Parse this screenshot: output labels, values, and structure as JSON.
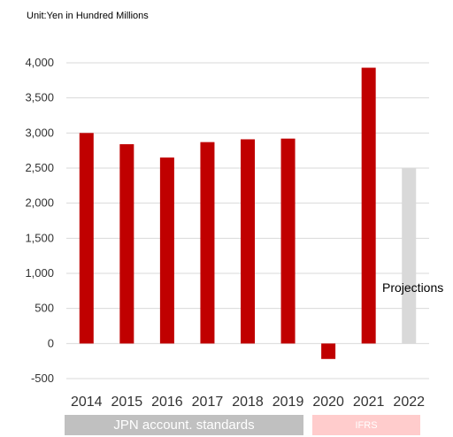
{
  "unit_label": "Unit:Yen in Hundred Millions",
  "projections_label": "Projections",
  "bands": {
    "jpn": "JPN account. standards",
    "ifrs": "IFRS"
  },
  "colors": {
    "actual": "#c00000",
    "projection": "#d9d9d9",
    "grid": "#d9d9d9",
    "jpn_band": "#c0c0c0",
    "ifrs_band": "#ffcccc"
  },
  "chart_data": {
    "type": "bar",
    "categories": [
      "2014",
      "2015",
      "2016",
      "2017",
      "2018",
      "2019",
      "2020",
      "2021",
      "2022"
    ],
    "values": [
      3000,
      2840,
      2650,
      2870,
      2910,
      2920,
      -220,
      3930,
      2500
    ],
    "projected": [
      false,
      false,
      false,
      false,
      false,
      false,
      false,
      false,
      true
    ],
    "ylim": [
      -500,
      4000
    ],
    "yticks": [
      -500,
      0,
      500,
      1000,
      1500,
      2000,
      2500,
      3000,
      3500,
      4000
    ],
    "ytick_labels": [
      "-500",
      "0",
      "500",
      "1,000",
      "1,500",
      "2,000",
      "2,500",
      "3,000",
      "3,500",
      "4,000"
    ],
    "grid": true,
    "title": "",
    "xlabel": "",
    "ylabel": ""
  }
}
